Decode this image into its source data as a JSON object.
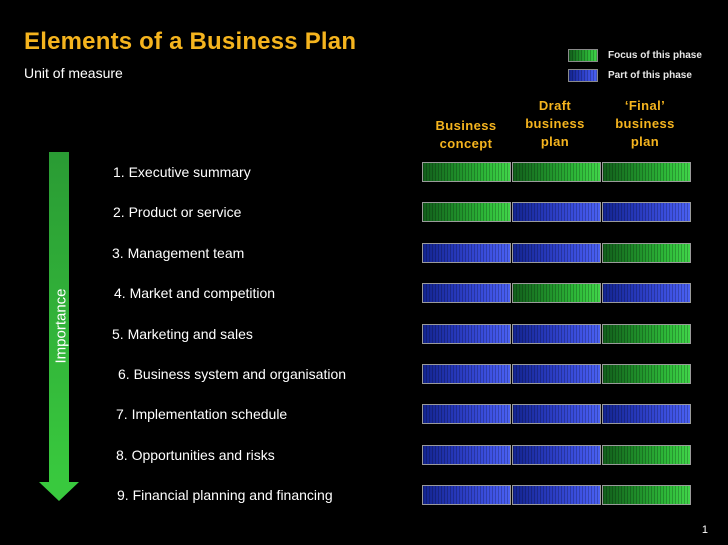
{
  "slide": {
    "title": "Elements of a Business Plan",
    "subtitle": "Unit of measure",
    "page_number": "1"
  },
  "legend": {
    "focus_label": "Focus of this phase",
    "part_label": "Part of this phase",
    "focus_color": "#1f9a2b",
    "part_color": "#2d43c4"
  },
  "axis": {
    "importance_label": "Importance",
    "arrow_color": "#39c93e"
  },
  "phases": [
    {
      "label": "Business\nconcept"
    },
    {
      "label": "Draft\nbusiness\nplan"
    },
    {
      "label": "‘Final’\nbusiness\nplan"
    }
  ],
  "elements": [
    {
      "label": "1.  Executive summary",
      "phases": [
        "focus",
        "focus",
        "focus"
      ]
    },
    {
      "label": "2.  Product or service",
      "phases": [
        "focus",
        "part",
        "part"
      ]
    },
    {
      "label": "3.  Management team",
      "phases": [
        "part",
        "part",
        "focus"
      ]
    },
    {
      "label": "4.  Market and competition",
      "phases": [
        "part",
        "focus",
        "part"
      ]
    },
    {
      "label": "5.  Marketing and sales",
      "phases": [
        "part",
        "part",
        "focus"
      ]
    },
    {
      "label": "6.  Business system and organisation",
      "phases": [
        "part",
        "part",
        "focus"
      ]
    },
    {
      "label": "7.  Implementation schedule",
      "phases": [
        "part",
        "part",
        "part"
      ]
    },
    {
      "label": "8.  Opportunities and risks",
      "phases": [
        "part",
        "part",
        "focus"
      ]
    },
    {
      "label": "9.  Financial planning and financing",
      "phases": [
        "part",
        "part",
        "focus"
      ]
    }
  ]
}
